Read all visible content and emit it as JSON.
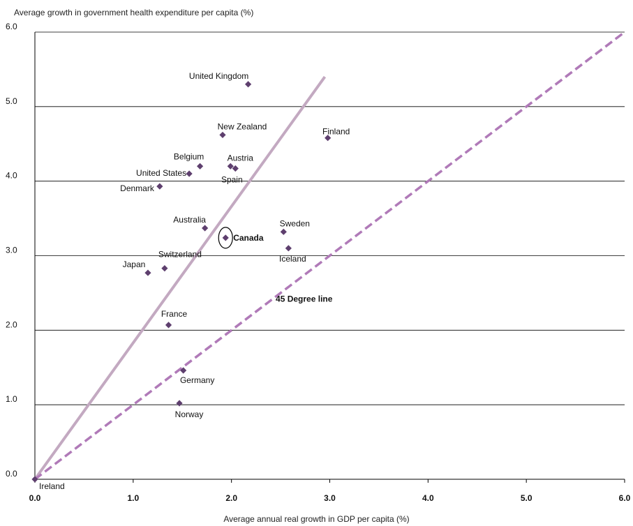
{
  "chart_data": {
    "type": "scatter",
    "title": "",
    "ylabel": "Average growth in government health expenditure per capita (%)",
    "xlabel": "Average annual real growth in GDP per capita (%)",
    "xlim": [
      0,
      6
    ],
    "ylim": [
      0,
      6
    ],
    "x_ticks": [
      "0.0",
      "1.0",
      "2.0",
      "3.0",
      "4.0",
      "5.0",
      "6.0"
    ],
    "y_ticks": [
      "0.0",
      "1.0",
      "2.0",
      "3.0",
      "4.0",
      "5.0",
      "6.0"
    ],
    "grid": "horizontal",
    "marker_color": "#5e3f6e",
    "points": [
      {
        "label": "United Kingdom",
        "x": 2.17,
        "y": 5.3
      },
      {
        "label": "New Zealand",
        "x": 1.91,
        "y": 4.62
      },
      {
        "label": "Finland",
        "x": 2.98,
        "y": 4.58
      },
      {
        "label": "Belgium",
        "x": 1.68,
        "y": 4.2
      },
      {
        "label": "Austria",
        "x": 1.99,
        "y": 4.2
      },
      {
        "label": "Spain",
        "x": 2.04,
        "y": 4.17
      },
      {
        "label": "United States",
        "x": 1.57,
        "y": 4.1
      },
      {
        "label": "Denmark",
        "x": 1.27,
        "y": 3.93
      },
      {
        "label": "Australia",
        "x": 1.73,
        "y": 3.37
      },
      {
        "label": "Canada",
        "x": 1.94,
        "y": 3.24,
        "highlight": true
      },
      {
        "label": "Sweden",
        "x": 2.53,
        "y": 3.32
      },
      {
        "label": "Iceland",
        "x": 2.58,
        "y": 3.1
      },
      {
        "label": "Switzerland",
        "x": 1.32,
        "y": 2.83
      },
      {
        "label": "Japan",
        "x": 1.15,
        "y": 2.77
      },
      {
        "label": "France",
        "x": 1.36,
        "y": 2.07
      },
      {
        "label": "Germany",
        "x": 1.51,
        "y": 1.46
      },
      {
        "label": "Norway",
        "x": 1.47,
        "y": 1.02
      },
      {
        "label": "Ireland",
        "x": 0.0,
        "y": 0.0
      }
    ],
    "trend_line": {
      "color": "#c3a9c1",
      "from": [
        0,
        0
      ],
      "to": [
        2.95,
        5.4
      ]
    },
    "reference_line": {
      "label": "45 Degree line",
      "color": "#b07ab8",
      "style": "dashed",
      "from": [
        0,
        0
      ],
      "to": [
        6,
        6
      ]
    }
  }
}
